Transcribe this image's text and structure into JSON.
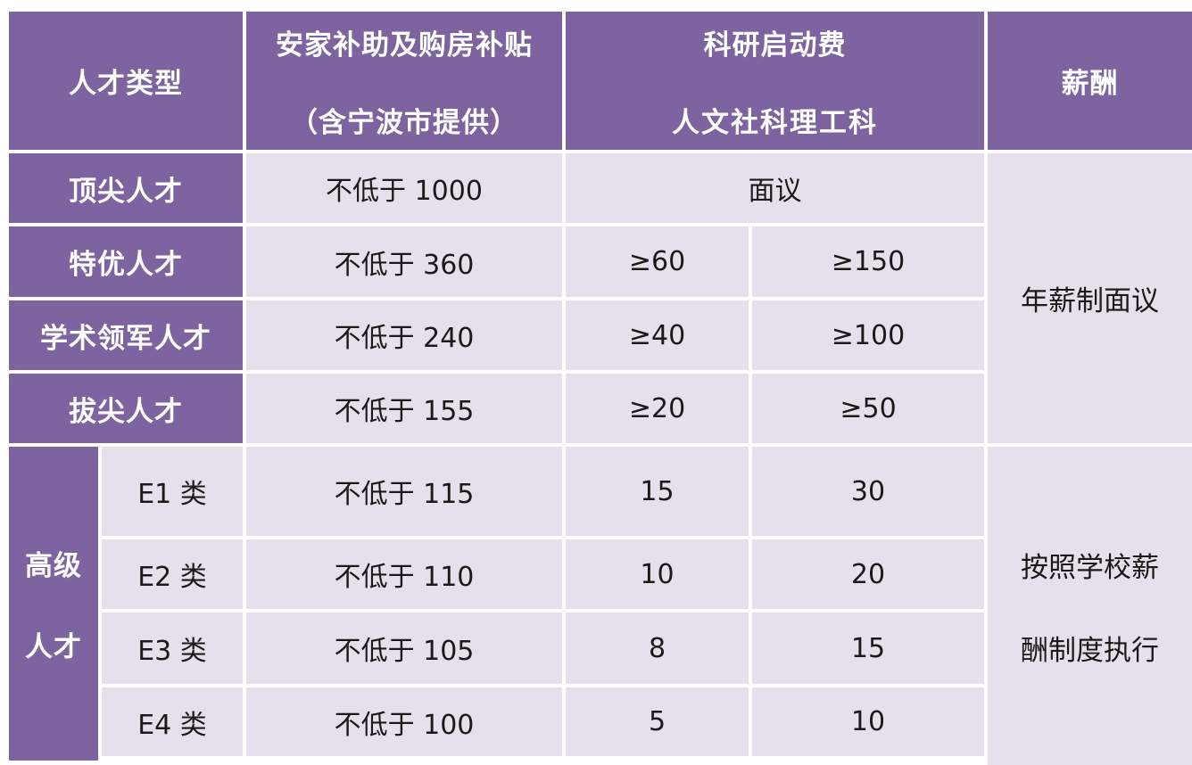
{
  "colors": {
    "purple": "#7D64A0",
    "lavender": "#E5E0EC",
    "text": "#1A1A1A",
    "page_bg": "#FFFFFF"
  },
  "header": {
    "talent_type": "人才类型",
    "settling_line1": "安家补助及购房补贴",
    "settling_line2": "（含宁波市提供）",
    "research_line1": "科研启动费",
    "research_line2": "人文社科理工科",
    "salary": "薪酬"
  },
  "rows": {
    "top": [
      {
        "label": "顶尖人才",
        "subsidy": "不低于 1000",
        "research_merged": "面议"
      },
      {
        "label": "特优人才",
        "subsidy": "不低于 360",
        "humanities": "≥60",
        "stem": "≥150"
      },
      {
        "label": "学术领军人才",
        "subsidy": "不低于 240",
        "humanities": "≥40",
        "stem": "≥100"
      },
      {
        "label": "拔尖人才",
        "subsidy": "不低于 155",
        "humanities": "≥20",
        "stem": "≥50"
      }
    ],
    "salary_top": "年薪制面议",
    "senior_group": {
      "label_line1": "高级",
      "label_line2": "人才",
      "rows": [
        {
          "label": "E1 类",
          "subsidy": "不低于 115",
          "humanities": "15",
          "stem": "30"
        },
        {
          "label": "E2 类",
          "subsidy": "不低于 110",
          "humanities": "10",
          "stem": "20"
        },
        {
          "label": "E3 类",
          "subsidy": "不低于 105",
          "humanities": "8",
          "stem": "15"
        },
        {
          "label": "E4 类",
          "subsidy": "不低于 100",
          "humanities": "5",
          "stem": "10"
        }
      ],
      "salary_line1": "按照学校薪",
      "salary_line2": "酬制度执行"
    }
  }
}
